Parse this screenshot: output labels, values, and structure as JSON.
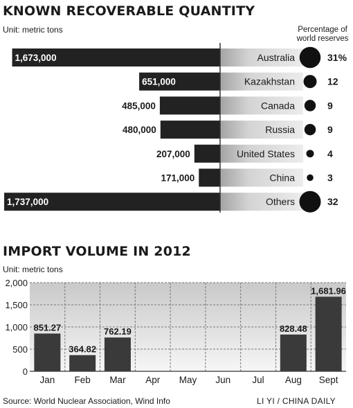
{
  "chart_data": [
    {
      "type": "bar",
      "title": "KNOWN RECOVERABLE QUANTITY",
      "unit": "Unit: metric tons",
      "pct_header": [
        "Percentage of",
        "world reserves"
      ],
      "categories": [
        "Australia",
        "Kazakhstan",
        "Canada",
        "Russia",
        "United States",
        "China",
        "Others"
      ],
      "values": [
        1673000,
        651000,
        485000,
        480000,
        207000,
        171000,
        1737000
      ],
      "value_labels": [
        "1,673,000",
        "651,000",
        "485,000",
        "480,000",
        "207,000",
        "171,000",
        "1,737,000"
      ],
      "percentages": [
        31,
        12,
        9,
        9,
        4,
        3,
        32
      ],
      "pct_labels": [
        "31%",
        "12",
        "9",
        "9",
        "4",
        "3",
        "32"
      ],
      "colors": {
        "bar": "#222222",
        "band_light": "#e6e6e6",
        "band_dark": "#a4a4a4"
      }
    },
    {
      "type": "bar",
      "title": "IMPORT VOLUME IN 2012",
      "unit": "Unit: metric tons",
      "categories": [
        "Jan",
        "Feb",
        "Mar",
        "Apr",
        "May",
        "Jun",
        "Jul",
        "Aug",
        "Sept"
      ],
      "values": [
        851.27,
        364.82,
        762.19,
        null,
        null,
        null,
        null,
        828.48,
        1681.96
      ],
      "value_labels": [
        "851.27",
        "364.82",
        "762.19",
        "",
        "",
        "",
        "",
        "828.48",
        "1,681.96"
      ],
      "ylim": [
        0,
        2000
      ],
      "yticks": [
        0,
        500,
        1000,
        1500,
        2000
      ],
      "ytick_labels": [
        "0",
        "500",
        "1,000",
        "1,500",
        "2,000"
      ],
      "grid": true,
      "colors": {
        "bar": "#3a3a3a",
        "bg_top": "#cfcfcf",
        "bg_bottom": "#f4f4f4"
      }
    }
  ],
  "footer": {
    "source": "Source: World Nuclear Association, Wind Info",
    "credit": "LI YI / CHINA DAILY"
  }
}
